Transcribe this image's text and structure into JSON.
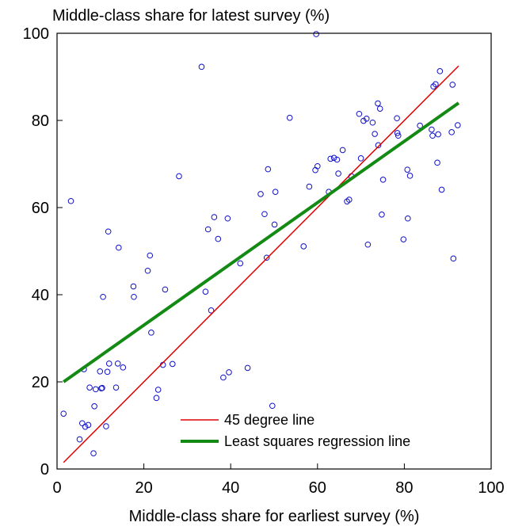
{
  "chart_data": {
    "type": "scatter",
    "title": "Middle-class share for latest survey (%)",
    "xlabel": "Middle-class share for earliest survey (%)",
    "ylabel": "",
    "xlim": [
      0,
      100
    ],
    "ylim": [
      0,
      100
    ],
    "xticks": [
      0,
      20,
      40,
      60,
      80,
      100
    ],
    "yticks": [
      0,
      20,
      40,
      60,
      80,
      100
    ],
    "grid": false,
    "legend_position": "bottom-right",
    "colors": {
      "points": "#1010c8",
      "line45": "#e00000",
      "regression": "#138a13"
    },
    "series": [
      {
        "type": "scatter",
        "marker": "hollow-circle",
        "points": [
          [
            1.5,
            12.7
          ],
          [
            3.2,
            61.5
          ],
          [
            5.2,
            6.8
          ],
          [
            5.8,
            10.5
          ],
          [
            6.2,
            22.9
          ],
          [
            6.5,
            9.7
          ],
          [
            7.2,
            10.1
          ],
          [
            7.5,
            18.7
          ],
          [
            8.4,
            3.6
          ],
          [
            8.6,
            14.4
          ],
          [
            8.9,
            18.3
          ],
          [
            9.9,
            22.4
          ],
          [
            10.2,
            18.5
          ],
          [
            10.4,
            18.6
          ],
          [
            10.6,
            39.5
          ],
          [
            11.3,
            9.8
          ],
          [
            11.6,
            22.3
          ],
          [
            11.8,
            54.5
          ],
          [
            12.0,
            24.2
          ],
          [
            13.6,
            18.7
          ],
          [
            14.0,
            24.2
          ],
          [
            14.2,
            50.8
          ],
          [
            15.2,
            23.3
          ],
          [
            17.6,
            41.9
          ],
          [
            17.7,
            39.5
          ],
          [
            20.9,
            45.5
          ],
          [
            21.4,
            49.0
          ],
          [
            21.7,
            31.3
          ],
          [
            22.9,
            16.3
          ],
          [
            23.3,
            18.2
          ],
          [
            24.4,
            23.9
          ],
          [
            24.9,
            41.2
          ],
          [
            26.6,
            24.1
          ],
          [
            28.1,
            67.2
          ],
          [
            33.3,
            92.3
          ],
          [
            34.2,
            40.7
          ],
          [
            34.8,
            55.0
          ],
          [
            35.5,
            36.4
          ],
          [
            36.2,
            57.8
          ],
          [
            37.1,
            52.8
          ],
          [
            38.3,
            21.0
          ],
          [
            39.3,
            57.5
          ],
          [
            39.6,
            22.2
          ],
          [
            42.2,
            47.2
          ],
          [
            43.9,
            23.2
          ],
          [
            46.9,
            63.1
          ],
          [
            47.8,
            58.5
          ],
          [
            48.3,
            48.5
          ],
          [
            48.6,
            68.8
          ],
          [
            49.6,
            14.5
          ],
          [
            50.1,
            56.1
          ],
          [
            50.3,
            63.6
          ],
          [
            53.6,
            80.6
          ],
          [
            56.8,
            51.1
          ],
          [
            58.1,
            64.8
          ],
          [
            59.5,
            68.6
          ],
          [
            59.7,
            99.8
          ],
          [
            60.0,
            69.5
          ],
          [
            62.6,
            63.6
          ],
          [
            63.0,
            71.2
          ],
          [
            63.8,
            71.4
          ],
          [
            64.5,
            71.0
          ],
          [
            64.8,
            67.8
          ],
          [
            65.8,
            73.2
          ],
          [
            66.8,
            61.4
          ],
          [
            67.3,
            61.8
          ],
          [
            67.8,
            67.2
          ],
          [
            69.6,
            81.5
          ],
          [
            70.0,
            71.3
          ],
          [
            70.6,
            79.9
          ],
          [
            71.3,
            80.4
          ],
          [
            71.6,
            51.5
          ],
          [
            72.7,
            79.5
          ],
          [
            73.2,
            76.9
          ],
          [
            73.9,
            83.9
          ],
          [
            74.0,
            74.3
          ],
          [
            74.4,
            82.7
          ],
          [
            74.8,
            58.4
          ],
          [
            75.1,
            66.4
          ],
          [
            78.3,
            80.5
          ],
          [
            78.4,
            77.1
          ],
          [
            78.6,
            76.5
          ],
          [
            79.8,
            52.7
          ],
          [
            80.7,
            68.7
          ],
          [
            80.8,
            57.5
          ],
          [
            81.3,
            67.3
          ],
          [
            83.6,
            78.8
          ],
          [
            86.3,
            77.9
          ],
          [
            86.5,
            76.5
          ],
          [
            86.7,
            87.8
          ],
          [
            87.2,
            88.3
          ],
          [
            87.6,
            70.3
          ],
          [
            87.8,
            76.8
          ],
          [
            88.2,
            91.3
          ],
          [
            88.6,
            64.1
          ],
          [
            90.9,
            77.3
          ],
          [
            91.1,
            88.2
          ],
          [
            91.3,
            48.3
          ],
          [
            92.3,
            78.9
          ]
        ]
      },
      {
        "name": "45 degree line",
        "type": "line",
        "x": [
          1.5,
          92.5
        ],
        "y": [
          1.5,
          92.5
        ]
      },
      {
        "name": "Least squares regression line",
        "type": "line",
        "x": [
          1.5,
          92.5
        ],
        "y": [
          20.0,
          84.0
        ]
      }
    ]
  }
}
